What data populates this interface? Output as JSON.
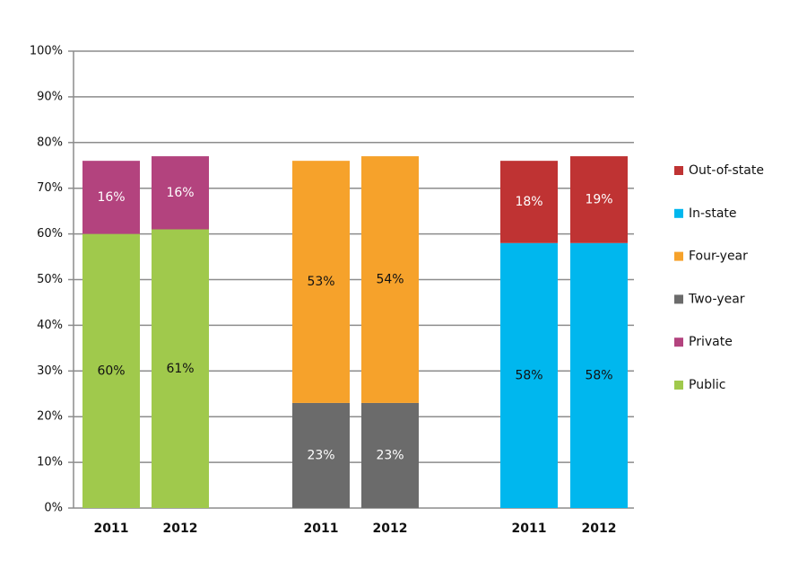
{
  "chart_data": {
    "type": "stacked-bar",
    "categories": [
      "2011",
      "2012",
      "2011",
      "2012",
      "2011",
      "2012"
    ],
    "series": [
      {
        "name": "Public",
        "color": "#a0c94c",
        "label_color": "#111111",
        "values": [
          60,
          61,
          null,
          null,
          null,
          null
        ],
        "value_labels": [
          "60%",
          "61%",
          null,
          null,
          null,
          null
        ]
      },
      {
        "name": "Private",
        "color": "#b3437e",
        "label_color": "#ffffff",
        "values": [
          16,
          16,
          null,
          null,
          null,
          null
        ],
        "value_labels": [
          "16%",
          "16%",
          null,
          null,
          null,
          null
        ]
      },
      {
        "name": "Two-year",
        "color": "#6b6b6b",
        "label_color": "#ffffff",
        "values": [
          null,
          null,
          23,
          23,
          null,
          null
        ],
        "value_labels": [
          null,
          null,
          "23%",
          "23%",
          null,
          null
        ]
      },
      {
        "name": "Four-year",
        "color": "#f6a22b",
        "label_color": "#111111",
        "values": [
          null,
          null,
          53,
          54,
          null,
          null
        ],
        "value_labels": [
          null,
          null,
          "53%",
          "54%",
          null,
          null
        ]
      },
      {
        "name": "In-state",
        "color": "#00b7ee",
        "label_color": "#111111",
        "values": [
          null,
          null,
          null,
          null,
          58,
          58
        ],
        "value_labels": [
          null,
          null,
          null,
          null,
          "58%",
          "58%"
        ]
      },
      {
        "name": "Out-of-state",
        "color": "#bf3333",
        "label_color": "#ffffff",
        "values": [
          null,
          null,
          null,
          null,
          18,
          19
        ],
        "value_labels": [
          null,
          null,
          null,
          null,
          "18%",
          "19%"
        ]
      }
    ],
    "ylim": [
      0,
      100
    ],
    "yticks": [
      {
        "value": 0,
        "label": "0%"
      },
      {
        "value": 10,
        "label": "10%"
      },
      {
        "value": 20,
        "label": "20%"
      },
      {
        "value": 30,
        "label": "30%"
      },
      {
        "value": 40,
        "label": "40%"
      },
      {
        "value": 50,
        "label": "50%"
      },
      {
        "value": 60,
        "label": "60%"
      },
      {
        "value": 70,
        "label": "70%"
      },
      {
        "value": 80,
        "label": "80%"
      },
      {
        "value": 90,
        "label": "90%"
      },
      {
        "value": 100,
        "label": "100%"
      }
    ],
    "grid": true,
    "legend": "right"
  }
}
